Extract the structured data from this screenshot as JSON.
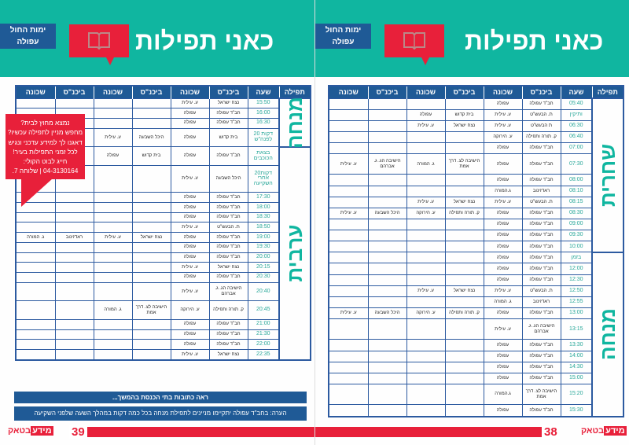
{
  "colors": {
    "teal": "#10b6a0",
    "blue": "#1f5a96",
    "red": "#e8203a"
  },
  "header": {
    "title": "כאני תפילות",
    "days": "ימות החול",
    "city": "עפולה",
    "icon": "open-book-icon"
  },
  "columns": [
    "תפילה",
    "שעה",
    "ביכנ\"ס",
    "שכונה",
    "ביכנ\"ס",
    "שכונה",
    "ביכנ\"ס",
    "שכונה"
  ],
  "right_page": {
    "page_number": "38",
    "logo": "מידע בטאק",
    "groups": [
      {
        "prayer": "שחרית",
        "rows": [
          [
            "05:40",
            "חב\"ד עפולה",
            "עפולה",
            "",
            "",
            "",
            ""
          ],
          [
            "ותיקין",
            "ת. הבעש\"ט",
            "ע. עילית",
            "בית קדוש",
            "עפולה",
            "",
            ""
          ],
          [
            "06:30",
            "ת הבעש\"ט",
            "ע. עילית",
            "נצח ישראל",
            "ע. עילית",
            "",
            ""
          ],
          [
            "06:40",
            "ק. תורה ותפילה",
            "ע. הירוקה",
            "",
            "",
            "",
            ""
          ],
          [
            "07:00",
            "חב\"ד עפולה",
            "עפולה",
            "",
            "",
            "",
            ""
          ],
          [
            "07:30",
            "חב\"ד עפולה",
            "עפולה",
            "הישיבה לצ. דרך אמת",
            "ג. המורה",
            "הישיבה הג. ג. אברהם",
            "ע. עילית"
          ],
          [
            "08:00",
            "חב\"ד עפולה",
            "עפולה",
            "",
            "",
            "",
            ""
          ],
          [
            "08:10",
            "ראדזינוב",
            "ג.המורה",
            "",
            "",
            "",
            ""
          ],
          [
            "08:15",
            "ת. הבעש\"ט",
            "ע. עילית",
            "נצח ישראל",
            "ע. עילית",
            "",
            ""
          ],
          [
            "08:30",
            "חב\"ד עפולה",
            "עפולה",
            "ק. תורה ותפילה",
            "ע. הירוקה",
            "היכל השבעה",
            "ע. עילית"
          ],
          [
            "09:00",
            "חב\"ד עפולה",
            "עפולה",
            "",
            "",
            "",
            ""
          ],
          [
            "09:30",
            "חב\"ד עפולה",
            "עפולה",
            "",
            "",
            "",
            ""
          ],
          [
            "10:00",
            "חב\"ד עפולה",
            "עפולה",
            "",
            "",
            "",
            ""
          ]
        ]
      },
      {
        "prayer": "מנחה",
        "rows": [
          [
            "בזמן",
            "חב\"ד עפולה",
            "עפולה",
            "",
            "",
            "",
            ""
          ],
          [
            "12:00",
            "חב\"ד עפולה",
            "עפולה",
            "",
            "",
            "",
            ""
          ],
          [
            "12:30",
            "חב\"ד עפולה",
            "עפולה",
            "",
            "",
            "",
            ""
          ],
          [
            "12:50",
            "ת. הבעש\"ט",
            "ע. עילית",
            "נצח ישראל",
            "ע. עילית",
            "",
            ""
          ],
          [
            "12:55",
            "ראדזינוב",
            "ג. המורה",
            "",
            "",
            "",
            ""
          ],
          [
            "13:00",
            "חב\"ד עפולה",
            "עפולה",
            "ק. תורה ותפילה",
            "ע. הירוקה",
            "היכל השבעה",
            "ע. עילית"
          ],
          [
            "13:15",
            "הישיבה הג. ג. אברהם",
            "ע. עילית",
            "",
            "",
            "",
            ""
          ],
          [
            "13:30",
            "חב\"ד עפולה",
            "עפולה",
            "",
            "",
            "",
            ""
          ],
          [
            "14:00",
            "חב\"ד עפולה",
            "עפולה",
            "",
            "",
            "",
            ""
          ],
          [
            "14:30",
            "חב\"ד עפולה",
            "עפולה",
            "",
            "",
            "",
            ""
          ],
          [
            "15:00",
            "חב\"ד עפולה",
            "עפולה",
            "",
            "",
            "",
            ""
          ],
          [
            "15:20",
            "הישיבה לצ. דרך אמת",
            "ג.המורה",
            "",
            "",
            "",
            ""
          ],
          [
            "15:30",
            "חב\"ד עפולה",
            "עפולה",
            "",
            "",
            "",
            ""
          ]
        ]
      }
    ]
  },
  "left_page": {
    "page_number": "39",
    "logo": "מידע בטאק",
    "groups": [
      {
        "prayer": "מנחה",
        "rows": [
          [
            "15:50",
            "נצח ישראל",
            "ע. עילית",
            "",
            "",
            "",
            ""
          ],
          [
            "16:00",
            "חב\"ד עפולה",
            "עפולה",
            "",
            "",
            "",
            ""
          ],
          [
            "16:30",
            "חב\"ד עפולה",
            "עפולה",
            "",
            "",
            "",
            ""
          ],
          [
            "דקות 20 לפנה\"ש",
            "בית קדוש",
            "עפולה",
            "היכל השבעה",
            "ע. עילית",
            "",
            ""
          ]
        ]
      },
      {
        "prayer": "ערבית",
        "rows": [
          [
            "בצאת הכוכבים",
            "חב\"ד עפולה",
            "עפולה",
            "בית קדוש",
            "עפולה",
            "",
            ""
          ],
          [
            "דקות20 אחרי השקיעה",
            "היכל השבעה",
            "ע. עילית",
            "",
            "",
            "",
            ""
          ],
          [
            "17:30",
            "חב\"ד עפולה",
            "עפולה",
            "",
            "",
            "",
            ""
          ],
          [
            "18:00",
            "חב\"ד עפולה",
            "עפולה",
            "",
            "",
            "",
            ""
          ],
          [
            "18:30",
            "חב\"ד עפולה",
            "עפולה",
            "",
            "",
            "",
            ""
          ],
          [
            "18:50",
            "ת. הבעש\"ט",
            "ע. עילית",
            "",
            "",
            "",
            ""
          ],
          [
            "19:00",
            "חב\"ד עפולה",
            "עפולה",
            "נצח ישראל",
            "ע. עילית",
            "ראדזינוב",
            "ג. המורה"
          ],
          [
            "19:30",
            "חב\"ד עפולה",
            "עפולה",
            "",
            "",
            "",
            ""
          ],
          [
            "20:00",
            "חב\"ד עפולה",
            "עפולה",
            "",
            "",
            "",
            ""
          ],
          [
            "20:15",
            "נצח ישראל",
            "ע. עילית",
            "",
            "",
            "",
            ""
          ],
          [
            "20:30",
            "חב\"ד עפולה",
            "עפולה",
            "",
            "",
            "",
            ""
          ],
          [
            "20:40",
            "הישיבה הג. ג. אברהם",
            "ע. עילית",
            "",
            "",
            "",
            ""
          ],
          [
            "20:45",
            "ק. תורה ותפילה",
            "ע. הירוקה",
            "הישיבה לצ. דרך אמת",
            "ג. המורה",
            "",
            ""
          ],
          [
            "21:00",
            "חב\"ד עפולה",
            "עפולה",
            "",
            "",
            "",
            ""
          ],
          [
            "21:30",
            "חב\"ד עפולה",
            "עפולה",
            "",
            "",
            "",
            ""
          ],
          [
            "22:00",
            "חב\"ד עפולה",
            "עפולה",
            "",
            "",
            "",
            ""
          ],
          [
            "22:35",
            "נצח ישראל",
            "ע. עילית",
            "",
            "",
            "",
            ""
          ]
        ]
      }
    ],
    "callout": [
      "נמצא מחוץ לבית?",
      "מחפש מניין לתפילה עכשיו?",
      "דאגנו לך למידע עדכני ונגיש",
      "לכל זמני התפילות בעיר!",
      "חייג לבוט הקולי:",
      "04-3130164 | שלוחה 7."
    ],
    "addresses_note": "ראה כתובות בתי הכנסת בהמשך...",
    "remark": "הערה: בחב\"ד עפולה יתקיימו מניינים לתפילת מנחה בכל כמה דקות במהלך השעה שלפני השקיעה"
  }
}
